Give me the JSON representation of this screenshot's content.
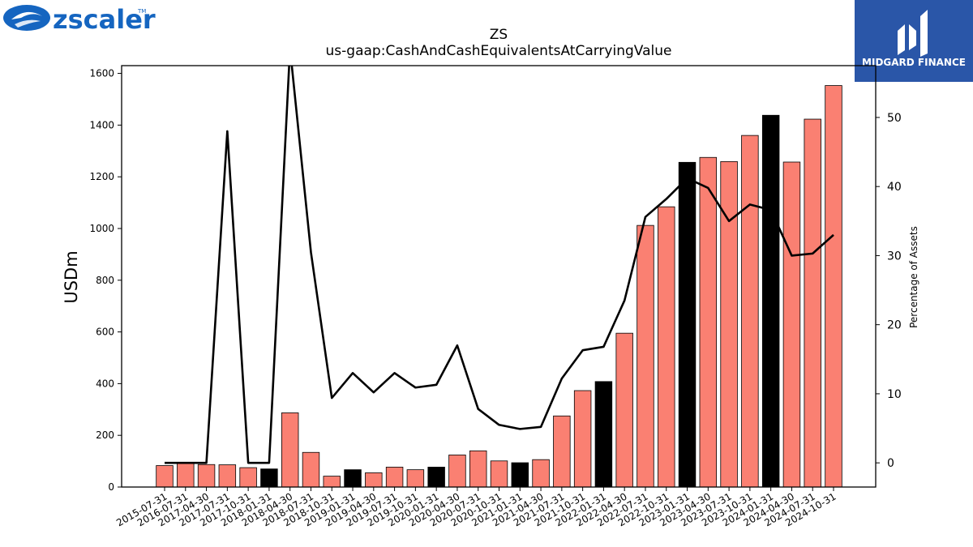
{
  "branding": {
    "left_logo": "zscaler",
    "left_logo_mark": "TM",
    "right_logo": "MIDGARD FINANCE",
    "right_logo_bg": "#2a56a8"
  },
  "chart_data": {
    "type": "bar",
    "title": "ZS",
    "subtitle": "us-gaap:CashAndCashEquivalentsAtCarryingValue",
    "ylabel": "USDm",
    "y2label": "Percentage of Assets",
    "ylim": [
      0,
      1630
    ],
    "y2lim": [
      -3.5,
      57.5
    ],
    "yticks": [
      0,
      200,
      400,
      600,
      800,
      1000,
      1200,
      1400,
      1600
    ],
    "y2ticks": [
      0,
      10,
      20,
      30,
      40,
      50
    ],
    "grid": false,
    "colors": {
      "annual": "#000000",
      "quarterly": "#fa8072",
      "line": "#000000"
    },
    "categories": [
      "2015-07-31",
      "2016-07-31",
      "2017-04-30",
      "2017-07-31",
      "2017-10-31",
      "2018-01-31",
      "2018-04-30",
      "2018-07-31",
      "2018-10-31",
      "2019-01-31",
      "2019-04-30",
      "2019-07-31",
      "2019-10-31",
      "2020-01-31",
      "2020-04-30",
      "2020-07-31",
      "2020-10-31",
      "2021-01-31",
      "2021-04-30",
      "2021-07-31",
      "2021-10-31",
      "2022-01-31",
      "2022-04-30",
      "2022-07-31",
      "2022-10-31",
      "2023-01-31",
      "2023-04-30",
      "2023-07-31",
      "2023-10-31",
      "2024-01-31",
      "2024-04-30",
      "2024-07-31",
      "2024-10-31"
    ],
    "series": [
      {
        "kind": "bar",
        "values": [
          83,
          92,
          87,
          86,
          75,
          70,
          287,
          134,
          42,
          67,
          55,
          77,
          67,
          77,
          124,
          140,
          101,
          94,
          106,
          275,
          373,
          408,
          595,
          1012,
          1084,
          1256,
          1275,
          1259,
          1360,
          1438,
          1257,
          1423,
          1553
        ],
        "highlight": [
          false,
          false,
          false,
          false,
          false,
          true,
          false,
          false,
          false,
          true,
          false,
          false,
          false,
          true,
          false,
          false,
          false,
          true,
          false,
          false,
          false,
          true,
          false,
          false,
          false,
          true,
          false,
          false,
          false,
          true,
          false,
          false,
          false
        ]
      },
      {
        "kind": "line",
        "values": [
          0,
          0,
          0,
          48,
          0,
          0,
          60,
          30.5,
          9.4,
          13,
          10.2,
          13,
          10.9,
          11.3,
          17,
          7.8,
          5.5,
          4.9,
          5.2,
          12.2,
          16.3,
          16.8,
          23.5,
          35.6,
          38.2,
          41.2,
          39.8,
          35,
          37.4,
          36.6,
          30,
          30.3,
          33
        ]
      }
    ]
  }
}
